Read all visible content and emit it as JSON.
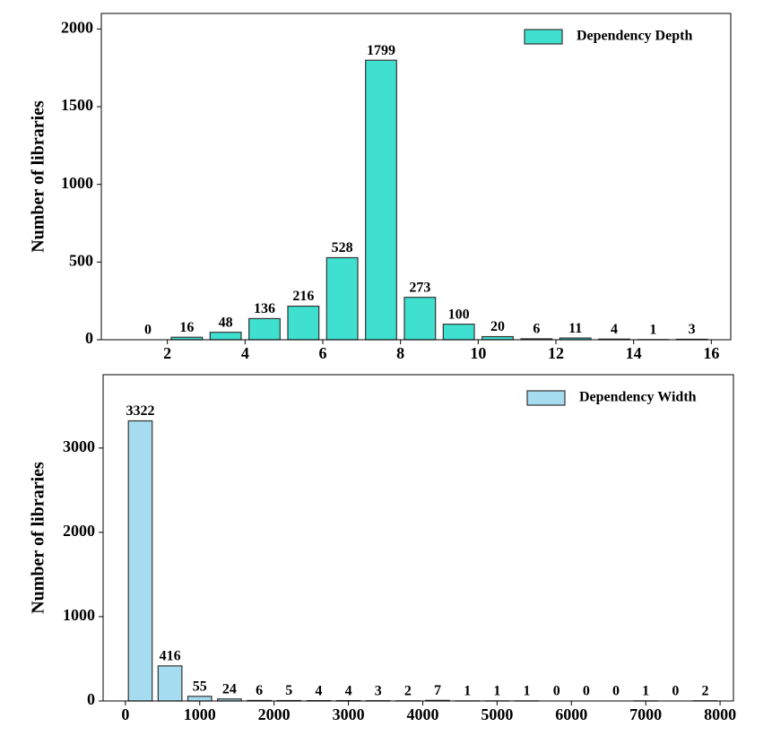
{
  "chart_data": [
    {
      "type": "histogram",
      "ylabel": "Number of libraries",
      "bins": [
        1,
        2,
        3,
        4,
        5,
        6,
        7,
        8,
        9,
        10,
        11,
        12,
        13,
        14,
        15,
        16
      ],
      "series": [
        {
          "name": "Dependency Depth",
          "color": "#40e0d0",
          "values": [
            0,
            16,
            48,
            136,
            216,
            528,
            1799,
            273,
            100,
            20,
            6,
            11,
            4,
            1,
            3
          ]
        }
      ],
      "xlim": [
        0.3,
        16.5
      ],
      "xticks": [
        2,
        4,
        6,
        8,
        10,
        12,
        14,
        16
      ],
      "ylim": [
        0,
        2100
      ],
      "yticks": [
        0,
        500,
        1000,
        1500,
        2000
      ],
      "legend": "upper right"
    },
    {
      "type": "histogram",
      "ylabel": "Number of libraries",
      "bins": [
        0,
        400,
        800,
        1200,
        1600,
        2000,
        2400,
        2800,
        3200,
        3600,
        4000,
        4400,
        4800,
        5200,
        5600,
        6000,
        6400,
        6800,
        7200,
        7600,
        8000
      ],
      "series": [
        {
          "name": "Dependency Width",
          "color": "#a6dcef",
          "values": [
            3322,
            416,
            55,
            24,
            6,
            5,
            4,
            4,
            3,
            2,
            7,
            1,
            1,
            1,
            0,
            0,
            0,
            1,
            0,
            2
          ]
        }
      ],
      "xlim": [
        -300,
        8180
      ],
      "xticks": [
        0,
        1000,
        2000,
        3000,
        4000,
        5000,
        6000,
        7000,
        8000
      ],
      "ylim": [
        0,
        3870
      ],
      "yticks": [
        0,
        1000,
        2000,
        3000
      ],
      "legend": "upper right"
    }
  ]
}
